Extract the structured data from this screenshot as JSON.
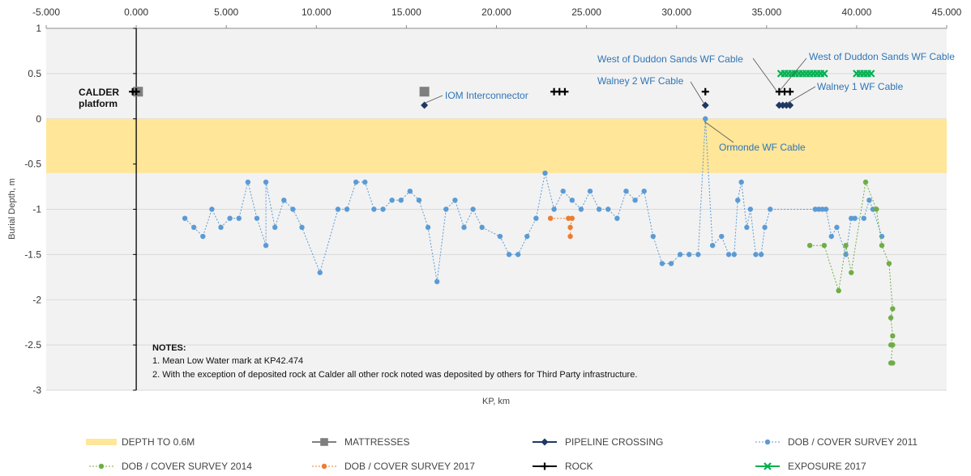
{
  "chart_data": {
    "type": "scatter",
    "xlabel": "KP, km",
    "ylabel": "Burial Depth, m",
    "xlim": [
      -5,
      45
    ],
    "ylim": [
      -3,
      1
    ],
    "x_ticks": [
      "-5.000",
      "0.000",
      "5.000",
      "10.000",
      "15.000",
      "20.000",
      "25.000",
      "30.000",
      "35.000",
      "40.000",
      "45.000"
    ],
    "y_ticks": [
      "1",
      "0.5",
      "0",
      "-0.5",
      "-1",
      "-1.5",
      "-2",
      "-2.5",
      "-3"
    ],
    "depth_band": {
      "name": "DEPTH TO 0.6M",
      "from": 0,
      "to": -0.6,
      "color": "#ffe699"
    },
    "series": [
      {
        "name": "MATTRESSES",
        "color": "#7f7f7f",
        "marker": "square",
        "points": [
          [
            0.1,
            0.3
          ],
          [
            16.0,
            0.3
          ]
        ]
      },
      {
        "name": "PIPELINE CROSSING",
        "color": "#1f3864",
        "marker": "diamond",
        "points": [
          [
            16.0,
            0.15
          ],
          [
            31.6,
            0.15
          ],
          [
            35.7,
            0.15
          ],
          [
            35.9,
            0.15
          ],
          [
            36.1,
            0.15
          ],
          [
            36.3,
            0.15
          ]
        ]
      },
      {
        "name": "DOB / COVER SURVEY 2011",
        "color": "#5b9bd5",
        "marker": "circle",
        "line": "dotted",
        "points": [
          [
            2.7,
            -1.1
          ],
          [
            3.2,
            -1.2
          ],
          [
            3.7,
            -1.3
          ],
          [
            4.2,
            -1.0
          ],
          [
            4.7,
            -1.2
          ],
          [
            5.2,
            -1.1
          ],
          [
            5.7,
            -1.1
          ],
          [
            6.2,
            -0.7
          ],
          [
            6.7,
            -1.1
          ],
          [
            7.2,
            -1.4
          ],
          [
            7.2,
            -0.7
          ],
          [
            7.7,
            -1.2
          ],
          [
            8.2,
            -0.9
          ],
          [
            8.7,
            -1.0
          ],
          [
            9.2,
            -1.2
          ],
          [
            10.2,
            -1.7
          ],
          [
            11.2,
            -1.0
          ],
          [
            11.7,
            -1.0
          ],
          [
            12.2,
            -0.7
          ],
          [
            12.7,
            -0.7
          ],
          [
            13.2,
            -1.0
          ],
          [
            13.7,
            -1.0
          ],
          [
            14.2,
            -0.9
          ],
          [
            14.7,
            -0.9
          ],
          [
            15.2,
            -0.8
          ],
          [
            15.7,
            -0.9
          ],
          [
            16.2,
            -1.2
          ],
          [
            16.7,
            -1.8
          ],
          [
            17.2,
            -1.0
          ],
          [
            17.7,
            -0.9
          ],
          [
            18.2,
            -1.2
          ],
          [
            18.7,
            -1.0
          ],
          [
            19.2,
            -1.2
          ],
          [
            20.2,
            -1.3
          ],
          [
            20.7,
            -1.5
          ],
          [
            21.2,
            -1.5
          ],
          [
            21.7,
            -1.3
          ],
          [
            22.2,
            -1.1
          ],
          [
            22.7,
            -0.6
          ],
          [
            23.2,
            -1.0
          ],
          [
            23.7,
            -0.8
          ],
          [
            24.2,
            -0.9
          ],
          [
            24.7,
            -1.0
          ],
          [
            25.2,
            -0.8
          ],
          [
            25.7,
            -1.0
          ],
          [
            26.2,
            -1.0
          ],
          [
            26.7,
            -1.1
          ],
          [
            27.2,
            -0.8
          ],
          [
            27.7,
            -0.9
          ],
          [
            28.2,
            -0.8
          ],
          [
            28.7,
            -1.3
          ],
          [
            29.2,
            -1.6
          ],
          [
            29.7,
            -1.6
          ],
          [
            30.2,
            -1.5
          ],
          [
            30.7,
            -1.5
          ],
          [
            31.2,
            -1.5
          ],
          [
            31.6,
            0.0
          ],
          [
            32.0,
            -1.4
          ],
          [
            32.5,
            -1.3
          ],
          [
            32.9,
            -1.5
          ],
          [
            33.2,
            -1.5
          ],
          [
            33.4,
            -0.9
          ],
          [
            33.6,
            -0.7
          ],
          [
            33.9,
            -1.2
          ],
          [
            34.1,
            -1.0
          ],
          [
            34.4,
            -1.5
          ],
          [
            34.7,
            -1.5
          ],
          [
            34.9,
            -1.2
          ],
          [
            35.2,
            -1.0
          ],
          [
            37.7,
            -1.0
          ],
          [
            37.9,
            -1.0
          ],
          [
            38.1,
            -1.0
          ],
          [
            38.3,
            -1.0
          ],
          [
            38.6,
            -1.3
          ],
          [
            38.9,
            -1.2
          ],
          [
            39.4,
            -1.5
          ],
          [
            39.7,
            -1.1
          ],
          [
            39.9,
            -1.1
          ],
          [
            40.4,
            -1.1
          ],
          [
            40.7,
            -0.9
          ],
          [
            40.9,
            -1.0
          ],
          [
            41.4,
            -1.3
          ]
        ]
      },
      {
        "name": "DOB / COVER SURVEY 2014",
        "color": "#70ad47",
        "marker": "circle",
        "line": "dotted",
        "points": [
          [
            37.4,
            -1.4
          ],
          [
            38.2,
            -1.4
          ],
          [
            39.0,
            -1.9
          ],
          [
            39.4,
            -1.4
          ],
          [
            39.7,
            -1.7
          ],
          [
            40.5,
            -0.7
          ],
          [
            41.1,
            -1.0
          ],
          [
            41.4,
            -1.4
          ],
          [
            41.8,
            -1.6
          ],
          [
            42.0,
            -2.1
          ],
          [
            41.9,
            -2.2
          ],
          [
            42.0,
            -2.4
          ],
          [
            41.9,
            -2.5
          ],
          [
            42.0,
            -2.5
          ],
          [
            41.9,
            -2.7
          ],
          [
            42.0,
            -2.7
          ]
        ]
      },
      {
        "name": "DOB / COVER SURVEY 2017",
        "color": "#ed7d31",
        "marker": "circle",
        "line": "dotted",
        "points": [
          [
            23.0,
            -1.1
          ],
          [
            24.0,
            -1.1
          ],
          [
            24.2,
            -1.1
          ],
          [
            24.1,
            -1.2
          ],
          [
            24.1,
            -1.3
          ]
        ]
      },
      {
        "name": "ROCK",
        "color": "#000000",
        "marker": "plus",
        "points": [
          [
            -0.2,
            0.3
          ],
          [
            0.0,
            0.3
          ],
          [
            23.2,
            0.3
          ],
          [
            23.5,
            0.3
          ],
          [
            23.8,
            0.3
          ],
          [
            31.6,
            0.3
          ],
          [
            35.7,
            0.3
          ],
          [
            36.0,
            0.3
          ],
          [
            36.3,
            0.3
          ]
        ]
      },
      {
        "name": "EXPOSURE 2017",
        "color": "#00b050",
        "marker": "x",
        "points": [
          [
            35.8,
            0.5
          ],
          [
            36.0,
            0.5
          ],
          [
            36.2,
            0.5
          ],
          [
            36.4,
            0.5
          ],
          [
            36.6,
            0.5
          ],
          [
            36.8,
            0.5
          ],
          [
            37.0,
            0.5
          ],
          [
            37.2,
            0.5
          ],
          [
            37.4,
            0.5
          ],
          [
            37.6,
            0.5
          ],
          [
            37.8,
            0.5
          ],
          [
            38.0,
            0.5
          ],
          [
            38.2,
            0.5
          ],
          [
            40.0,
            0.5
          ],
          [
            40.2,
            0.5
          ],
          [
            40.4,
            0.5
          ],
          [
            40.6,
            0.5
          ],
          [
            40.8,
            0.5
          ]
        ]
      }
    ],
    "annotations": [
      {
        "text": "CALDER",
        "bold": true
      },
      {
        "text": "platform",
        "bold": true
      },
      {
        "text": "IOM Interconnector"
      },
      {
        "text": "West of Duddon Sands WF Cable"
      },
      {
        "text": "West of Duddon Sands WF Cable"
      },
      {
        "text": "Walney 2 WF Cable"
      },
      {
        "text": "Walney 1 WF Cable"
      },
      {
        "text": "Ormonde WF Cable"
      }
    ],
    "notes": {
      "title": "NOTES:",
      "lines": [
        "1. Mean Low Water mark at KP42.474",
        "2. With the exception of deposited rock at Calder all other rock noted was deposited by others for Third Party infrastructure."
      ]
    },
    "legend_position": "bottom"
  }
}
